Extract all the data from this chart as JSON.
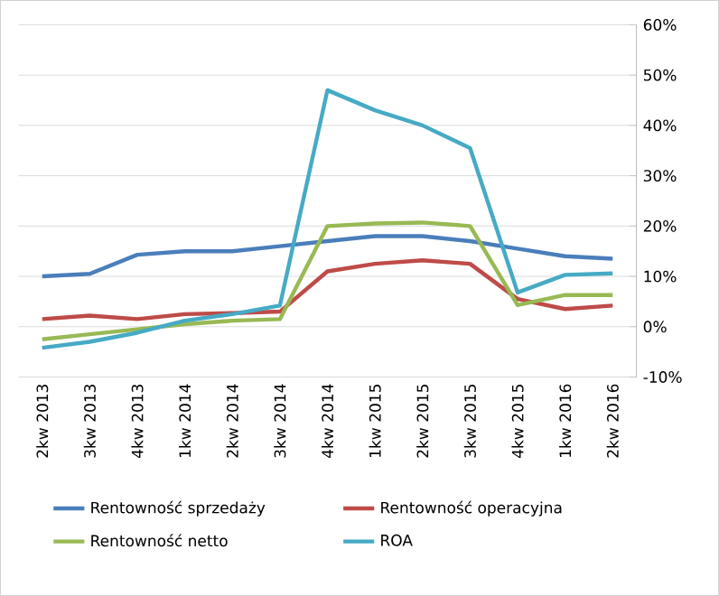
{
  "chart_data": {
    "type": "line",
    "categories": [
      "2kw 2013",
      "3kw 2013",
      "4kw 2013",
      "1kw 2014",
      "2kw 2014",
      "3kw 2014",
      "4kw 2014",
      "1kw 2015",
      "2kw 2015",
      "3kw 2015",
      "4kw 2015",
      "1kw 2016",
      "2kw 2016"
    ],
    "series": [
      {
        "name": "Rentowność sprzedaży",
        "color": "#4a7ebb",
        "values": [
          10,
          10.5,
          14.3,
          15,
          15,
          16,
          17,
          18,
          18,
          17,
          15.5,
          14,
          13.5
        ]
      },
      {
        "name": "Rentowność operacyjna",
        "color": "#be4b48",
        "values": [
          1.5,
          2.2,
          1.5,
          2.5,
          2.7,
          3,
          11,
          12.5,
          13.2,
          12.5,
          5.5,
          3.5,
          4.2
        ]
      },
      {
        "name": "Rentowność netto",
        "color": "#98b954",
        "values": [
          -2.5,
          -1.5,
          -0.5,
          0.5,
          1.2,
          1.5,
          20,
          20.5,
          20.7,
          20,
          4.3,
          6.3,
          6.3
        ]
      },
      {
        "name": "ROA",
        "color": "#46aac5",
        "values": [
          -4.2,
          -3,
          -1.2,
          1.2,
          2.5,
          4.2,
          47,
          43,
          40,
          35.5,
          6.8,
          10.3,
          10.6
        ]
      }
    ],
    "ylim": [
      -10,
      60
    ],
    "yticks": [
      {
        "value": -10,
        "label": "-10%"
      },
      {
        "value": 0,
        "label": "0%"
      },
      {
        "value": 10,
        "label": "10%"
      },
      {
        "value": 20,
        "label": "20%"
      },
      {
        "value": 30,
        "label": "30%"
      },
      {
        "value": 40,
        "label": "40%"
      },
      {
        "value": 50,
        "label": "50%"
      },
      {
        "value": 60,
        "label": "60%"
      }
    ],
    "grid": "y",
    "legend": "bottom",
    "marker": "none",
    "line_style": "solid"
  }
}
